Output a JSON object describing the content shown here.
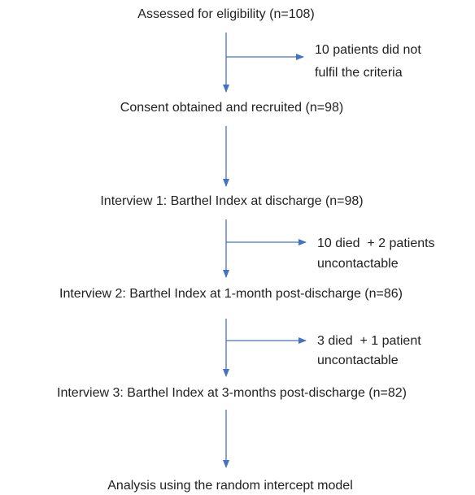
{
  "nodes": [
    {
      "label": "Assessed for eligibility (n=108)"
    },
    {
      "label": "Consent obtained and recruited (n=98)"
    },
    {
      "label": "Interview 1: Barthel Index at discharge (n=98)"
    },
    {
      "label": "Interview 2: Barthel Index at 1-month post-discharge (n=86)"
    },
    {
      "label": "Interview 3: Barthel Index at 3-months post-discharge (n=82)"
    },
    {
      "label": "Analysis using the random intercept model"
    }
  ],
  "exclusions": [
    {
      "lines": [
        "10 patients did not",
        "fulfil the criteria"
      ]
    },
    {
      "lines": [
        "10 died  + 2 patients",
        "uncontactable"
      ]
    },
    {
      "lines": [
        "3 died  + 1 patient",
        "uncontactable"
      ]
    }
  ]
}
